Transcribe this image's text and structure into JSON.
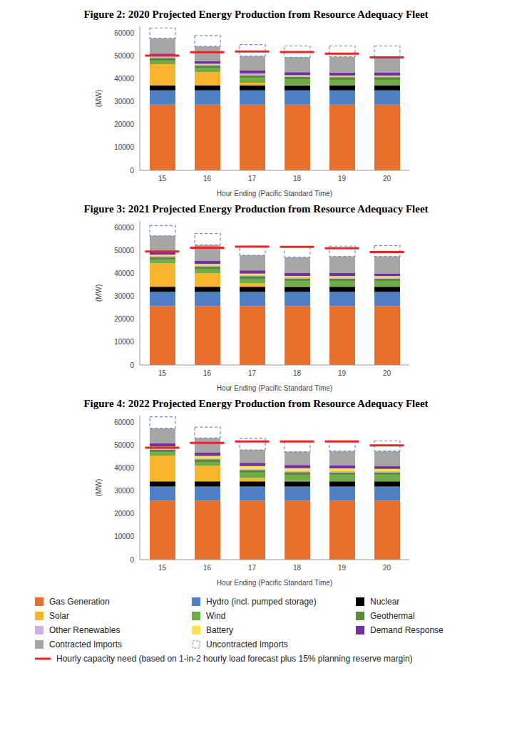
{
  "chart_data": [
    {
      "type": "bar",
      "title": "Figure 2: 2020 Projected Energy Production from Resource Adequacy Fleet",
      "x_label": "Hour Ending (Pacific Standard Time)",
      "y_label": "(MW)",
      "categories": [
        "15",
        "16",
        "17",
        "18",
        "19",
        "20"
      ],
      "ylim": [
        0,
        63000
      ],
      "yticks": [
        0,
        10000,
        20000,
        30000,
        40000,
        50000,
        60000
      ],
      "grid": false,
      "stacked": true,
      "series": [
        {
          "name": "Gas Generation",
          "color": "#e8702a",
          "values": [
            28800,
            28800,
            28800,
            28800,
            28800,
            28800
          ]
        },
        {
          "name": "Hydro (incl. pumped storage)",
          "color": "#4f7fc4",
          "values": [
            6200,
            6200,
            6200,
            6200,
            6200,
            6200
          ]
        },
        {
          "name": "Nuclear",
          "color": "#000000",
          "values": [
            2200,
            2200,
            2200,
            2200,
            2200,
            2200
          ]
        },
        {
          "name": "Solar",
          "color": "#f7b42c",
          "values": [
            9300,
            5800,
            1200,
            200,
            0,
            0
          ]
        },
        {
          "name": "Wind",
          "color": "#70ad47",
          "values": [
            1500,
            1700,
            2000,
            2300,
            2400,
            2400
          ]
        },
        {
          "name": "Geothermal",
          "color": "#5a8a3a",
          "values": [
            1200,
            1200,
            1200,
            1200,
            1200,
            1200
          ]
        },
        {
          "name": "Other Renewables",
          "color": "#c9b3e0",
          "values": [
            500,
            500,
            500,
            500,
            500,
            500
          ]
        },
        {
          "name": "Battery",
          "color": "#ffe14a",
          "values": [
            200,
            200,
            200,
            200,
            200,
            200
          ]
        },
        {
          "name": "Demand Response",
          "color": "#7030a0",
          "values": [
            1200,
            1300,
            1400,
            1400,
            1300,
            1200
          ]
        },
        {
          "name": "Contracted Imports",
          "color": "#a6a6a6",
          "values": [
            6700,
            6400,
            6300,
            6500,
            6900,
            6300
          ]
        },
        {
          "name": "Uncontracted Imports",
          "color": "#6f8fd0",
          "line_style": "dashed",
          "values": [
            4500,
            4700,
            5000,
            5000,
            4800,
            5500
          ]
        },
        {
          "name": "Hourly capacity need (based on 1-in-2 hourly load forecast plus 15% planning reserve margin)",
          "color": "#e8262a",
          "type": "line",
          "marker": "dash",
          "values": [
            50200,
            51700,
            52000,
            51800,
            51100,
            49400
          ]
        }
      ]
    },
    {
      "type": "bar",
      "title": "Figure 3: 2021 Projected Energy Production from Resource Adequacy Fleet",
      "x_label": "Hour Ending (Pacific Standard Time)",
      "y_label": "(MW)",
      "categories": [
        "15",
        "16",
        "17",
        "18",
        "19",
        "20"
      ],
      "ylim": [
        0,
        63000
      ],
      "yticks": [
        0,
        10000,
        20000,
        30000,
        40000,
        50000,
        60000
      ],
      "grid": false,
      "stacked": true,
      "series": [
        {
          "name": "Gas Generation",
          "color": "#e8702a",
          "values": [
            25800,
            25800,
            25800,
            25800,
            25800,
            25800
          ]
        },
        {
          "name": "Hydro (incl. pumped storage)",
          "color": "#4f7fc4",
          "values": [
            6200,
            6200,
            6200,
            6200,
            6200,
            6200
          ]
        },
        {
          "name": "Nuclear",
          "color": "#000000",
          "values": [
            2200,
            2200,
            2200,
            2200,
            2200,
            2200
          ]
        },
        {
          "name": "Solar",
          "color": "#f7b42c",
          "values": [
            10300,
            6000,
            1500,
            200,
            0,
            0
          ]
        },
        {
          "name": "Wind",
          "color": "#70ad47",
          "values": [
            1500,
            1700,
            2000,
            2300,
            2400,
            2400
          ]
        },
        {
          "name": "Geothermal",
          "color": "#5a8a3a",
          "values": [
            1200,
            1200,
            1200,
            1200,
            1200,
            1200
          ]
        },
        {
          "name": "Other Renewables",
          "color": "#c9b3e0",
          "values": [
            500,
            500,
            500,
            500,
            500,
            500
          ]
        },
        {
          "name": "Battery",
          "color": "#ffe14a",
          "values": [
            600,
            600,
            600,
            600,
            600,
            600
          ]
        },
        {
          "name": "Demand Response",
          "color": "#7030a0",
          "values": [
            1200,
            1300,
            1400,
            1400,
            1300,
            1200
          ]
        },
        {
          "name": "Contracted Imports",
          "color": "#a6a6a6",
          "values": [
            7000,
            7000,
            6600,
            6800,
            7300,
            7400
          ]
        },
        {
          "name": "Uncontracted Imports",
          "color": "#6f8fd0",
          "line_style": "dashed",
          "values": [
            4500,
            5000,
            4000,
            4300,
            4500,
            4800
          ]
        },
        {
          "name": "Hourly capacity need (based on 1-in-2 hourly load forecast plus 15% planning reserve margin)",
          "color": "#e8262a",
          "type": "line",
          "marker": "dash",
          "values": [
            49700,
            51300,
            51800,
            51700,
            51100,
            49400
          ]
        }
      ]
    },
    {
      "type": "bar",
      "title": "Figure 4: 2022 Projected Energy Production from Resource Adequacy Fleet",
      "x_label": "Hour Ending (Pacific Standard Time)",
      "y_label": "(MW)",
      "categories": [
        "15",
        "16",
        "17",
        "18",
        "19",
        "20"
      ],
      "ylim": [
        0,
        63000
      ],
      "yticks": [
        0,
        10000,
        20000,
        30000,
        40000,
        50000,
        60000
      ],
      "grid": false,
      "stacked": true,
      "legend": "bottom",
      "series": [
        {
          "name": "Gas Generation",
          "color": "#e8702a",
          "values": [
            25800,
            25800,
            25800,
            25800,
            25800,
            25800
          ]
        },
        {
          "name": "Hydro (incl. pumped storage)",
          "color": "#4f7fc4",
          "values": [
            6200,
            6200,
            6200,
            6200,
            6200,
            6200
          ]
        },
        {
          "name": "Nuclear",
          "color": "#000000",
          "values": [
            2200,
            2200,
            2200,
            2200,
            2200,
            2200
          ]
        },
        {
          "name": "Solar",
          "color": "#f7b42c",
          "values": [
            11300,
            6800,
            1500,
            200,
            0,
            0
          ]
        },
        {
          "name": "Wind",
          "color": "#70ad47",
          "values": [
            1500,
            1700,
            2300,
            2700,
            2800,
            2800
          ]
        },
        {
          "name": "Geothermal",
          "color": "#5a8a3a",
          "values": [
            1200,
            1200,
            1200,
            1200,
            1200,
            1200
          ]
        },
        {
          "name": "Other Renewables",
          "color": "#c9b3e0",
          "values": [
            500,
            500,
            500,
            500,
            500,
            500
          ]
        },
        {
          "name": "Battery",
          "color": "#ffe14a",
          "values": [
            800,
            1000,
            1200,
            1200,
            1200,
            1000
          ]
        },
        {
          "name": "Demand Response",
          "color": "#7030a0",
          "values": [
            1400,
            1400,
            1400,
            1400,
            1400,
            1300
          ]
        },
        {
          "name": "Contracted Imports",
          "color": "#a6a6a6",
          "values": [
            6600,
            6400,
            5700,
            5800,
            6200,
            6500
          ]
        },
        {
          "name": "Uncontracted Imports",
          "color": "#6f8fd0",
          "line_style": "dashed",
          "values": [
            5000,
            4800,
            5000,
            4800,
            4500,
            4500
          ]
        },
        {
          "name": "Hourly capacity need (based on 1-in-2 hourly load forecast plus 15% planning reserve margin)",
          "color": "#e8262a",
          "type": "line",
          "marker": "dash",
          "values": [
            49000,
            51100,
            51700,
            51700,
            51700,
            50000
          ]
        }
      ]
    }
  ]
}
